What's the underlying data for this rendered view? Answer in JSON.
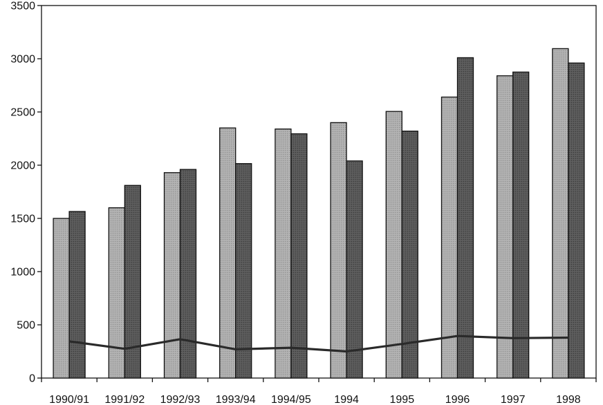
{
  "chart_data": {
    "type": "bar",
    "title": "",
    "xlabel": "",
    "ylabel": "",
    "categories": [
      "1990/91",
      "1991/92",
      "1992/93",
      "1993/94",
      "1994/95",
      "1994",
      "1995",
      "1996",
      "1997",
      "1998"
    ],
    "ylim": [
      0,
      3500
    ],
    "yticks": [
      0,
      500,
      1000,
      1500,
      2000,
      2500,
      3000,
      3500
    ],
    "grid": false,
    "series": [
      {
        "type": "bar",
        "color": "#a9a9a9",
        "values": [
          1500,
          1600,
          1930,
          2350,
          2340,
          2400,
          2505,
          2640,
          2840,
          3095
        ]
      },
      {
        "type": "bar",
        "color": "#585858",
        "values": [
          1565,
          1810,
          1960,
          2015,
          2295,
          2040,
          2320,
          3010,
          2875,
          2960
        ]
      },
      {
        "type": "line",
        "color": "#2a2a2a",
        "values": [
          345,
          275,
          365,
          270,
          285,
          250,
          320,
          395,
          375,
          380
        ]
      }
    ]
  }
}
